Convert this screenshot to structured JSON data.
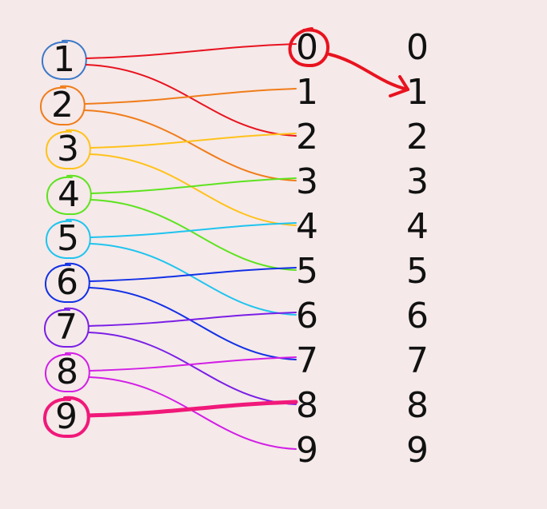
{
  "left_column": [
    "1",
    "2",
    "3",
    "4",
    "5",
    "6",
    "7",
    "8",
    "9"
  ],
  "middle_column": [
    "0",
    "1",
    "2",
    "3",
    "4",
    "5",
    "6",
    "7",
    "8",
    "9"
  ],
  "right_column": [
    "0",
    "1",
    "2",
    "3",
    "4",
    "5",
    "6",
    "7",
    "8",
    "9"
  ],
  "colors": {
    "background": "#f5e9e9",
    "text": "#111111",
    "1": "#e8131f",
    "2": "#f07d1a",
    "3": "#ffc21a",
    "4": "#5de31e",
    "5": "#1ec4ef",
    "6": "#1230e6",
    "7": "#7a1fe6",
    "8": "#d21ee6",
    "9": "#f0197a",
    "circle_1": "#3c79c9",
    "circle_0": "#e8131f",
    "arrow": "#e8131f"
  },
  "mapping": [
    {
      "from": "1",
      "to": [
        "0",
        "2"
      ]
    },
    {
      "from": "2",
      "to": [
        "1",
        "3"
      ]
    },
    {
      "from": "3",
      "to": [
        "2",
        "4"
      ]
    },
    {
      "from": "4",
      "to": [
        "3",
        "5"
      ]
    },
    {
      "from": "5",
      "to": [
        "4",
        "6"
      ]
    },
    {
      "from": "6",
      "to": [
        "5",
        "7"
      ]
    },
    {
      "from": "7",
      "to": [
        "6",
        "8"
      ]
    },
    {
      "from": "8",
      "to": [
        "7",
        "9"
      ]
    },
    {
      "from": "9",
      "to": [
        "8"
      ]
    }
  ],
  "arrow": {
    "from": "0",
    "to": "1"
  }
}
